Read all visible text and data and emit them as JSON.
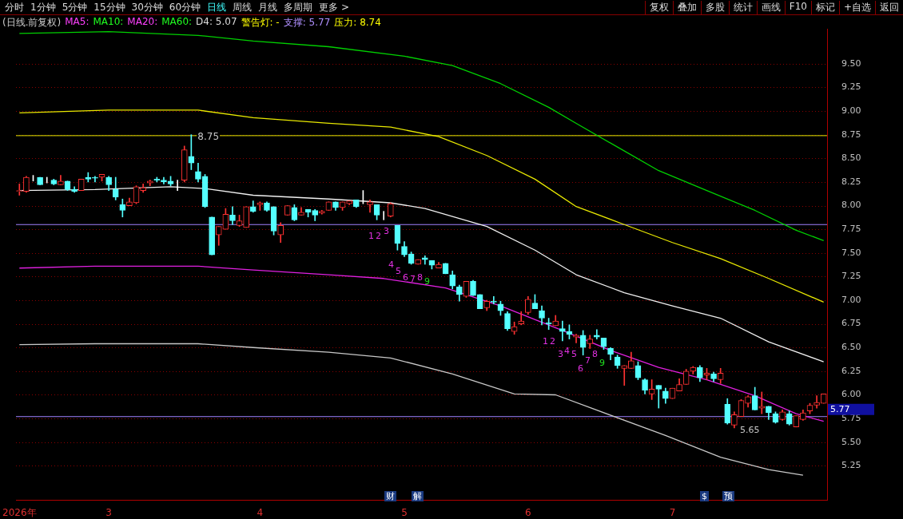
{
  "chart_data": {
    "type": "candlestick",
    "title": "(日线.前复权)",
    "categories": [
      "2026年",
      null,
      null,
      null,
      null,
      null,
      null,
      null,
      null,
      null,
      null,
      null,
      null,
      "3",
      null,
      null,
      null,
      null,
      null,
      null,
      null,
      null,
      null,
      null,
      null,
      null,
      null,
      null,
      null,
      null,
      null,
      null,
      null,
      null,
      null,
      "4",
      null,
      null,
      null,
      null,
      null,
      null,
      null,
      null,
      null,
      null,
      null,
      null,
      null,
      null,
      null,
      null,
      null,
      null,
      null,
      null,
      "5",
      null,
      null,
      null,
      null,
      null,
      null,
      null,
      null,
      null,
      null,
      null,
      null,
      null,
      null,
      null,
      null,
      null,
      "6",
      null,
      null,
      null,
      null,
      null,
      null,
      null,
      null,
      null,
      null,
      null,
      null,
      null,
      null,
      null,
      null,
      null,
      null,
      null,
      null,
      "7",
      null,
      null,
      null,
      null,
      null,
      null,
      null,
      null,
      null,
      null,
      null,
      null,
      null,
      null,
      null,
      null,
      null,
      null,
      null,
      null,
      null,
      null
    ],
    "ohlc": [
      [
        8.15,
        8.23,
        8.11,
        8.16
      ],
      [
        8.15,
        8.31,
        8.14,
        8.3
      ],
      [
        8.29,
        8.32,
        8.26,
        8.29
      ],
      [
        8.3,
        8.3,
        8.22,
        8.22
      ],
      [
        8.27,
        8.3,
        8.24,
        8.27
      ],
      [
        8.27,
        8.28,
        8.22,
        8.23
      ],
      [
        8.22,
        8.32,
        8.22,
        8.26
      ],
      [
        8.26,
        8.26,
        8.16,
        8.17
      ],
      [
        8.17,
        8.2,
        8.14,
        8.15
      ],
      [
        8.16,
        8.28,
        8.16,
        8.28
      ],
      [
        8.3,
        8.35,
        8.25,
        8.28
      ],
      [
        8.3,
        8.31,
        8.25,
        8.29
      ],
      [
        8.3,
        8.33,
        8.26,
        8.33
      ],
      [
        8.3,
        8.31,
        8.16,
        8.22
      ],
      [
        8.17,
        8.3,
        8.06,
        8.09
      ],
      [
        8.01,
        8.07,
        7.88,
        7.95
      ],
      [
        8.0,
        8.08,
        8.0,
        8.04
      ],
      [
        8.03,
        8.21,
        8.02,
        8.2
      ],
      [
        8.16,
        8.23,
        8.14,
        8.19
      ],
      [
        8.24,
        8.27,
        8.21,
        8.26
      ],
      [
        8.28,
        8.3,
        8.25,
        8.27
      ],
      [
        8.27,
        8.3,
        8.23,
        8.25
      ],
      [
        8.26,
        8.31,
        8.21,
        8.23
      ],
      [
        8.25,
        8.27,
        8.16,
        8.25
      ],
      [
        8.27,
        8.63,
        8.25,
        8.59
      ],
      [
        8.52,
        8.75,
        8.38,
        8.45
      ],
      [
        8.36,
        8.45,
        8.25,
        8.28
      ],
      [
        8.31,
        8.33,
        7.98,
        7.99
      ],
      [
        7.88,
        7.88,
        7.48,
        7.48
      ],
      [
        7.69,
        7.78,
        7.58,
        7.78
      ],
      [
        7.75,
        7.97,
        7.75,
        7.91
      ],
      [
        7.9,
        7.99,
        7.8,
        7.84
      ],
      [
        7.79,
        7.9,
        7.78,
        7.84
      ],
      [
        7.77,
        7.99,
        7.77,
        7.99
      ],
      [
        7.99,
        8.05,
        7.93,
        7.94
      ],
      [
        8.01,
        8.04,
        7.95,
        8.03
      ],
      [
        8.03,
        8.04,
        7.94,
        7.95
      ],
      [
        7.99,
        7.99,
        7.69,
        7.73
      ],
      [
        7.69,
        7.82,
        7.61,
        7.79
      ],
      [
        7.9,
        8.0,
        7.9,
        8.0
      ],
      [
        7.98,
        8.01,
        7.84,
        7.85
      ],
      [
        7.9,
        7.98,
        7.9,
        7.93
      ],
      [
        7.96,
        7.96,
        7.88,
        7.93
      ],
      [
        7.95,
        7.96,
        7.84,
        7.9
      ],
      [
        7.92,
        7.95,
        7.91,
        7.94
      ],
      [
        7.95,
        8.04,
        7.95,
        8.04
      ],
      [
        8.04,
        8.04,
        7.95,
        7.98
      ],
      [
        7.98,
        8.04,
        7.95,
        8.04
      ],
      [
        8.02,
        8.05,
        8.01,
        8.05
      ],
      [
        8.06,
        8.06,
        7.98,
        7.99
      ],
      [
        8.04,
        8.16,
        8.02,
        8.04
      ],
      [
        8.01,
        8.06,
        7.93,
        8.04
      ],
      [
        8.01,
        8.01,
        7.85,
        7.9
      ],
      [
        7.88,
        7.94,
        7.85,
        7.88
      ],
      [
        7.89,
        8.03,
        7.88,
        8.02
      ],
      [
        7.79,
        7.79,
        7.53,
        7.6
      ],
      [
        7.57,
        7.62,
        7.46,
        7.48
      ],
      [
        7.49,
        7.51,
        7.38,
        7.39
      ],
      [
        7.38,
        7.43,
        7.38,
        7.43
      ],
      [
        7.45,
        7.47,
        7.38,
        7.43
      ],
      [
        7.42,
        7.42,
        7.33,
        7.37
      ],
      [
        7.34,
        7.4,
        7.34,
        7.38
      ],
      [
        7.39,
        7.39,
        7.28,
        7.28
      ],
      [
        7.27,
        7.31,
        7.12,
        7.15
      ],
      [
        7.14,
        7.16,
        6.99,
        7.06
      ],
      [
        7.04,
        7.2,
        7.03,
        7.2
      ],
      [
        7.2,
        7.21,
        7.05,
        7.05
      ],
      [
        7.06,
        7.06,
        6.91,
        6.91
      ],
      [
        6.92,
        7.0,
        6.89,
        6.99
      ],
      [
        6.99,
        7.04,
        6.96,
        6.98
      ],
      [
        6.96,
        6.99,
        6.84,
        6.89
      ],
      [
        6.86,
        6.88,
        6.68,
        6.7
      ],
      [
        6.67,
        6.77,
        6.64,
        6.72
      ],
      [
        6.75,
        6.88,
        6.74,
        6.78
      ],
      [
        6.87,
        7.04,
        6.85,
        7.01
      ],
      [
        6.97,
        7.06,
        6.91,
        6.91
      ],
      [
        6.89,
        6.94,
        6.74,
        6.81
      ],
      [
        6.76,
        6.81,
        6.69,
        6.75
      ],
      [
        6.73,
        6.84,
        6.73,
        6.78
      ],
      [
        6.7,
        6.78,
        6.57,
        6.67
      ],
      [
        6.67,
        6.74,
        6.59,
        6.64
      ],
      [
        6.61,
        6.64,
        6.55,
        6.63
      ],
      [
        6.63,
        6.68,
        6.42,
        6.5
      ],
      [
        6.54,
        6.63,
        6.49,
        6.59
      ],
      [
        6.63,
        6.69,
        6.59,
        6.61
      ],
      [
        6.6,
        6.6,
        6.48,
        6.51
      ],
      [
        6.49,
        6.5,
        6.37,
        6.43
      ],
      [
        6.4,
        6.42,
        6.28,
        6.31
      ],
      [
        6.28,
        6.31,
        6.1,
        6.31
      ],
      [
        6.28,
        6.45,
        6.28,
        6.36
      ],
      [
        6.31,
        6.35,
        6.16,
        6.18
      ],
      [
        6.16,
        6.17,
        6.01,
        6.05
      ],
      [
        6.01,
        6.16,
        5.95,
        6.06
      ],
      [
        6.1,
        6.1,
        5.86,
        6.06
      ],
      [
        6.04,
        6.07,
        5.91,
        5.96
      ],
      [
        5.96,
        6.07,
        5.96,
        6.07
      ],
      [
        6.04,
        6.17,
        6.04,
        6.11
      ],
      [
        6.11,
        6.27,
        6.11,
        6.25
      ],
      [
        6.25,
        6.3,
        6.22,
        6.29
      ],
      [
        6.29,
        6.31,
        6.14,
        6.18
      ],
      [
        6.21,
        6.28,
        6.16,
        6.23
      ],
      [
        6.22,
        6.24,
        6.14,
        6.17
      ],
      [
        6.16,
        6.28,
        6.12,
        6.23
      ],
      [
        5.9,
        5.96,
        5.69,
        5.7
      ],
      [
        5.68,
        5.82,
        5.65,
        5.79
      ],
      [
        5.77,
        5.95,
        5.77,
        5.94
      ],
      [
        5.91,
        5.99,
        5.87,
        5.98
      ],
      [
        5.99,
        6.08,
        5.84,
        5.84
      ],
      [
        5.86,
        6.03,
        5.8,
        5.88
      ],
      [
        5.88,
        5.88,
        5.74,
        5.81
      ],
      [
        5.8,
        5.82,
        5.7,
        5.71
      ],
      [
        5.74,
        5.84,
        5.73,
        5.82
      ],
      [
        5.8,
        5.83,
        5.68,
        5.69
      ],
      [
        5.66,
        5.78,
        5.66,
        5.78
      ],
      [
        5.74,
        5.84,
        5.73,
        5.81
      ],
      [
        5.83,
        5.91,
        5.8,
        5.89
      ],
      [
        5.89,
        5.99,
        5.86,
        5.92
      ],
      [
        5.91,
        6.01,
        5.91,
        6.01
      ]
    ],
    "series": [
      {
        "type": "line",
        "color": "#00d000",
        "values": [
          9.82,
          null,
          null,
          null,
          null,
          null,
          null,
          null,
          null,
          null,
          null,
          null,
          null,
          9.84,
          null,
          null,
          null,
          null,
          null,
          null,
          null,
          null,
          null,
          null,
          null,
          null,
          9.8,
          null,
          null,
          null,
          null,
          null,
          null,
          null,
          9.74,
          null,
          null,
          null,
          null,
          null,
          null,
          null,
          null,
          null,
          null,
          9.68,
          null,
          null,
          null,
          null,
          null,
          null,
          null,
          null,
          null,
          null,
          9.58,
          null,
          null,
          null,
          null,
          null,
          null,
          9.48,
          null,
          null,
          null,
          null,
          null,
          null,
          9.29,
          null,
          null,
          null,
          null,
          null,
          null,
          9.04,
          null,
          null,
          null,
          8.87,
          null,
          null,
          null,
          null,
          null,
          8.62,
          null,
          null,
          null,
          null,
          null,
          8.37,
          null,
          null,
          null,
          null,
          null,
          null,
          8.16,
          null,
          null,
          null,
          null,
          null,
          null,
          7.95,
          null,
          null,
          null,
          null,
          null,
          7.74,
          null,
          null,
          null,
          7.63
        ]
      },
      {
        "type": "line",
        "color": "#e8e800",
        "values": [
          8.98,
          null,
          null,
          null,
          null,
          null,
          null,
          null,
          null,
          null,
          null,
          null,
          null,
          9.01,
          null,
          null,
          null,
          null,
          null,
          null,
          null,
          null,
          null,
          null,
          null,
          null,
          9.01,
          null,
          null,
          null,
          null,
          null,
          null,
          null,
          8.93,
          null,
          null,
          null,
          null,
          null,
          null,
          null,
          null,
          null,
          null,
          8.87,
          null,
          null,
          null,
          null,
          null,
          null,
          null,
          null,
          8.83,
          null,
          null,
          null,
          null,
          null,
          null,
          8.73,
          null,
          null,
          null,
          null,
          null,
          null,
          8.53,
          null,
          null,
          null,
          null,
          null,
          null,
          8.28,
          null,
          null,
          null,
          null,
          null,
          7.99,
          null,
          null,
          null,
          null,
          null,
          null,
          7.8,
          null,
          null,
          null,
          null,
          null,
          null,
          7.61,
          null,
          null,
          null,
          null,
          null,
          null,
          7.44,
          null,
          null,
          null,
          null,
          null,
          null,
          7.23,
          null,
          null,
          null,
          null,
          null,
          null,
          null,
          6.98
        ]
      },
      {
        "type": "line",
        "color": "#f0f0f0",
        "values": [
          8.16,
          null,
          null,
          null,
          null,
          null,
          null,
          null,
          null,
          null,
          null,
          8.17,
          null,
          null,
          null,
          null,
          null,
          null,
          null,
          null,
          null,
          null,
          8.2,
          null,
          null,
          null,
          null,
          8.18,
          null,
          null,
          null,
          null,
          null,
          null,
          8.11,
          null,
          null,
          null,
          null,
          null,
          null,
          null,
          null,
          null,
          null,
          8.07,
          null,
          null,
          null,
          null,
          null,
          null,
          null,
          null,
          8.03,
          null,
          null,
          null,
          null,
          7.97,
          null,
          null,
          null,
          null,
          null,
          null,
          null,
          null,
          7.78,
          null,
          null,
          null,
          null,
          null,
          null,
          7.53,
          null,
          null,
          null,
          null,
          null,
          7.27,
          null,
          null,
          null,
          null,
          null,
          null,
          7.08,
          null,
          null,
          null,
          null,
          null,
          null,
          6.94,
          null,
          null,
          null,
          null,
          null,
          null,
          6.81,
          null,
          null,
          null,
          null,
          null,
          null,
          6.56,
          null,
          null,
          null,
          null,
          null,
          null,
          null,
          6.35
        ]
      },
      {
        "type": "line",
        "color": "#e020e0",
        "values": [
          7.34,
          null,
          null,
          null,
          null,
          null,
          null,
          null,
          null,
          null,
          null,
          7.36,
          null,
          null,
          null,
          null,
          null,
          null,
          null,
          null,
          null,
          null,
          null,
          null,
          null,
          null,
          7.36,
          null,
          null,
          null,
          null,
          null,
          null,
          null,
          7.32,
          null,
          null,
          null,
          null,
          null,
          null,
          null,
          null,
          null,
          null,
          7.27,
          null,
          null,
          null,
          null,
          null,
          null,
          null,
          7.23,
          null,
          null,
          null,
          null,
          null,
          null,
          null,
          null,
          7.13,
          null,
          null,
          null,
          null,
          null,
          null,
          null,
          6.94,
          null,
          null,
          null,
          null,
          null,
          null,
          null,
          null,
          6.68,
          null,
          null,
          null,
          null,
          null,
          null,
          6.47,
          null,
          null,
          null,
          null,
          null,
          null,
          6.29,
          null,
          null,
          null,
          null,
          null,
          null,
          6.16,
          null,
          null,
          null,
          null,
          null,
          null,
          5.99,
          null,
          null,
          null,
          null,
          null,
          5.8,
          null,
          null,
          null,
          5.72
        ]
      },
      {
        "type": "line",
        "color": "#c8c8c8",
        "values": [
          6.53,
          null,
          null,
          null,
          null,
          null,
          null,
          null,
          null,
          null,
          null,
          6.54,
          null,
          null,
          null,
          null,
          null,
          null,
          null,
          null,
          null,
          null,
          null,
          null,
          null,
          null,
          6.54,
          null,
          null,
          null,
          null,
          null,
          null,
          null,
          6.5,
          null,
          null,
          null,
          null,
          null,
          null,
          null,
          null,
          null,
          null,
          6.45,
          null,
          null,
          null,
          null,
          null,
          null,
          null,
          null,
          6.39,
          null,
          null,
          null,
          null,
          null,
          null,
          null,
          null,
          6.22,
          null,
          null,
          null,
          null,
          null,
          null,
          null,
          null,
          6.01,
          null,
          null,
          null,
          null,
          null,
          6.0,
          null,
          null,
          null,
          null,
          null,
          null,
          null,
          null,
          null,
          null,
          null,
          null,
          null,
          null,
          null,
          5.57,
          null,
          null,
          null,
          null,
          null,
          null,
          null,
          5.34,
          null,
          null,
          null,
          null,
          null,
          null,
          5.21,
          null,
          null,
          null,
          null,
          5.15,
          null,
          null,
          null
        ]
      }
    ],
    "ylim": [
      4.89,
      9.87
    ],
    "yticks": [
      {
        "value": 5.25,
        "label": "5.25"
      },
      {
        "value": 5.5,
        "label": "5.50"
      },
      {
        "value": 5.75,
        "label": "5.75"
      },
      {
        "value": 6,
        "label": "6.00"
      },
      {
        "value": 6.25,
        "label": "6.25"
      },
      {
        "value": 6.5,
        "label": "6.50"
      },
      {
        "value": 6.75,
        "label": "6.75"
      },
      {
        "value": 7,
        "label": "7.00"
      },
      {
        "value": 7.25,
        "label": "7.25"
      },
      {
        "value": 7.5,
        "label": "7.50"
      },
      {
        "value": 7.75,
        "label": "7.75"
      },
      {
        "value": 8,
        "label": "8.00"
      },
      {
        "value": 8.25,
        "label": "8.25"
      },
      {
        "value": 8.5,
        "label": "8.50"
      },
      {
        "value": 8.75,
        "label": "8.75"
      },
      {
        "value": 9,
        "label": "9.00"
      },
      {
        "value": 9.25,
        "label": "9.25"
      },
      {
        "value": 9.5,
        "label": "9.50"
      }
    ],
    "grid": "y",
    "legend": false,
    "ref_lines": [
      {
        "axis": "y",
        "value": 8.74,
        "color": "#e8e800"
      },
      {
        "axis": "y",
        "value": 7.8,
        "color": "#a080ff"
      },
      {
        "axis": "y",
        "value": 5.77,
        "label": "5.77",
        "color": "#a080ff"
      }
    ],
    "annotations": [
      "分时",
      "1分钟",
      "5分钟",
      "15分钟",
      "30分钟",
      "60分钟",
      "日线",
      "周线",
      "月线",
      "多周期",
      "更多 >",
      "复权",
      "叠加",
      "多股",
      "统计",
      "画线",
      "F10",
      "标记",
      "+自选",
      "返回",
      "MA5:",
      "MA10:",
      "MA20:",
      "MA60:",
      "D4: 5.07",
      "警告灯: -",
      "支撑: 5.77",
      "压力: 8.74",
      "1",
      "2",
      "3",
      "4",
      "5",
      "6",
      "7",
      "8",
      "9",
      "1",
      "2",
      "3",
      "4",
      "5",
      "6",
      "7",
      "8",
      "9",
      "财",
      "解",
      "$",
      "预",
      "5.65",
      {
        "text": "8.75",
        "y": 8.75
      }
    ]
  }
}
